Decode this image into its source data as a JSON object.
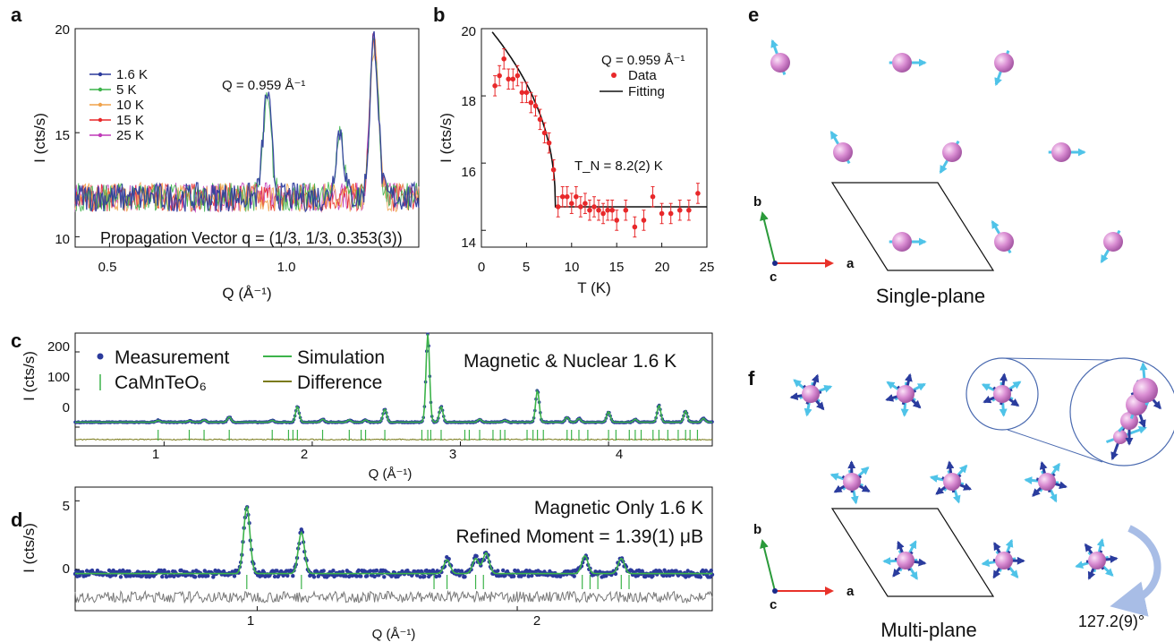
{
  "colors": {
    "blue": "#2b3a9c",
    "green": "#3cb34a",
    "orange": "#f0a24a",
    "red": "#e8282a",
    "magenta": "#c03ab8",
    "olive": "#7a7a1a",
    "grey": "#777777",
    "spin_light": "#4fc3e8",
    "spin_dark": "#2a3c9e",
    "atom": "#d98cd2",
    "axis_a": "#e8322a",
    "axis_b": "#2a9a3a",
    "axis_c": "#1a2a8a"
  },
  "icons": [
    "atom-sphere-icon",
    "spin-arrow-icon",
    "rotation-arrow-icon"
  ],
  "panel_a": {
    "label": "a",
    "xlabel": "Q (Å⁻¹)",
    "ylabel": "I (cts/s)",
    "annotation_q": "Q = 0.959 Å⁻¹",
    "annotation_prop": "Propagation Vector q = (1/3, 1/3, 0.353(3))",
    "xticks": [
      "0.5",
      "1.0"
    ],
    "yticks": [
      "10",
      "15",
      "20"
    ]
  },
  "panel_b": {
    "label": "b",
    "xlabel": "T (K)",
    "ylabel": "I (cts/s)",
    "annotation_q": "Q = 0.959 Å⁻¹",
    "legend": [
      "Data",
      "Fitting"
    ],
    "annotation_tn": "T_N = 8.2(2) K",
    "xticks": [
      "0",
      "5",
      "10",
      "15",
      "20",
      "25"
    ],
    "yticks": [
      "14",
      "16",
      "18",
      "20"
    ]
  },
  "panel_c": {
    "label": "c",
    "xlabel": "Q (Å⁻¹)",
    "ylabel": "I (cts/s)",
    "legend": [
      "Measurement",
      "Simulation",
      "CaMnTeO₆",
      "Difference"
    ],
    "annotation": "Magnetic & Nuclear  1.6 K",
    "xticks": [
      "1",
      "2",
      "3",
      "4"
    ],
    "yticks": [
      "0",
      "100",
      "200"
    ]
  },
  "panel_d": {
    "label": "d",
    "xlabel": "Q (Å⁻¹)",
    "ylabel": "I (cts/s)",
    "annotation1": "Magnetic Only  1.6 K",
    "annotation2": "Refined Moment = 1.39(1) μB",
    "xticks": [
      "1",
      "2"
    ],
    "yticks": [
      "0",
      "5"
    ]
  },
  "panel_e": {
    "label": "e",
    "caption": "Single-plane",
    "axes": [
      "a",
      "b",
      "c"
    ]
  },
  "panel_f": {
    "label": "f",
    "caption": "Multi-plane",
    "axes": [
      "a",
      "b",
      "c"
    ],
    "angle": "127.2(9)°"
  },
  "chart_data": [
    {
      "panel": "a",
      "type": "line",
      "xlabel": "Q (Å⁻¹)",
      "ylabel": "I (cts/s)",
      "xlim": [
        0.4,
        1.4
      ],
      "ylim": [
        9.5,
        20
      ],
      "background": 11.9,
      "series": [
        {
          "name": "1.6 K",
          "color": "#2b3a9c",
          "peaks": [
            [
              0.959,
              5.0
            ],
            [
              1.17,
              3.2
            ],
            [
              1.27,
              7.6
            ]
          ]
        },
        {
          "name": "5 K",
          "color": "#3cb34a",
          "peaks": [
            [
              0.959,
              4.5
            ],
            [
              1.17,
              3.0
            ],
            [
              1.27,
              7.6
            ]
          ]
        },
        {
          "name": "10 K",
          "color": "#f0a24a",
          "peaks": [
            [
              1.27,
              7.5
            ]
          ]
        },
        {
          "name": "15 K",
          "color": "#e8282a",
          "peaks": [
            [
              1.27,
              7.5
            ]
          ]
        },
        {
          "name": "25 K",
          "color": "#c03ab8",
          "peaks": [
            [
              1.27,
              7.5
            ]
          ]
        }
      ]
    },
    {
      "panel": "b",
      "type": "scatter",
      "xlabel": "T (K)",
      "ylabel": "I (cts/s)",
      "xlim": [
        0,
        25
      ],
      "ylim": [
        13.5,
        20
      ],
      "series": [
        {
          "name": "Data",
          "color": "#e8282a",
          "x": [
            1.5,
            2.0,
            2.5,
            3.0,
            3.5,
            4.0,
            4.5,
            5.0,
            5.5,
            6.0,
            6.5,
            7.0,
            7.5,
            8.0,
            8.5,
            9.0,
            9.5,
            10.0,
            10.5,
            11.0,
            11.5,
            12.0,
            12.5,
            13.0,
            13.5,
            14.0,
            14.5,
            15.0,
            16.0,
            17.0,
            18.0,
            19.0,
            20.0,
            21.0,
            22.0,
            23.0,
            24.0
          ],
          "y": [
            18.3,
            18.6,
            19.1,
            18.5,
            18.5,
            18.6,
            18.1,
            18.1,
            17.8,
            17.7,
            17.3,
            16.9,
            16.6,
            15.8,
            14.7,
            15.0,
            15.0,
            14.8,
            15.0,
            14.7,
            14.8,
            14.6,
            14.7,
            14.6,
            14.5,
            14.6,
            14.6,
            14.3,
            14.6,
            14.1,
            14.3,
            15.0,
            14.5,
            14.5,
            14.6,
            14.6,
            15.1
          ],
          "error": 0.3
        },
        {
          "name": "Fitting",
          "color": "#111111",
          "type": "line",
          "tn": 8.2,
          "base": 14.7,
          "top": 19.9
        }
      ]
    },
    {
      "panel": "c",
      "type": "line",
      "xlabel": "Q (Å⁻¹)",
      "ylabel": "I (cts/s)",
      "xlim": [
        0.4,
        4.7
      ],
      "ylim": [
        -50,
        250
      ],
      "background": 13,
      "peaks": [
        [
          0.96,
          5
        ],
        [
          1.17,
          4
        ],
        [
          1.27,
          6
        ],
        [
          1.44,
          14
        ],
        [
          1.73,
          5
        ],
        [
          1.9,
          42
        ],
        [
          2.07,
          8
        ],
        [
          2.25,
          6
        ],
        [
          2.36,
          6
        ],
        [
          2.49,
          35
        ],
        [
          2.78,
          235
        ],
        [
          2.87,
          42
        ],
        [
          3.13,
          8
        ],
        [
          3.3,
          5
        ],
        [
          3.52,
          85
        ],
        [
          3.72,
          13
        ],
        [
          3.8,
          10
        ],
        [
          4.0,
          28
        ],
        [
          4.18,
          8
        ],
        [
          4.34,
          45
        ],
        [
          4.52,
          30
        ],
        [
          4.64,
          10
        ]
      ],
      "ticks": [
        0.96,
        1.17,
        1.27,
        1.44,
        1.73,
        1.84,
        1.87,
        1.9,
        2.07,
        2.25,
        2.33,
        2.36,
        2.49,
        2.74,
        2.78,
        2.8,
        2.87,
        3.03,
        3.06,
        3.13,
        3.22,
        3.27,
        3.3,
        3.45,
        3.49,
        3.52,
        3.56,
        3.72,
        3.75,
        3.8,
        3.86,
        4.0,
        4.05,
        4.14,
        4.18,
        4.22,
        4.3,
        4.34,
        4.4,
        4.47,
        4.52,
        4.55,
        4.6
      ],
      "difference_offset": -33
    },
    {
      "panel": "d",
      "type": "line",
      "xlabel": "Q (Å⁻¹)",
      "ylabel": "I (cts/s)",
      "xlim": [
        0.3,
        2.75
      ],
      "ylim": [
        -3,
        6
      ],
      "background": -0.3,
      "peaks": [
        [
          0.96,
          4.9
        ],
        [
          1.17,
          3.0
        ],
        [
          1.73,
          1.0
        ],
        [
          1.84,
          1.1
        ],
        [
          1.88,
          1.5
        ],
        [
          2.26,
          1.3
        ],
        [
          2.4,
          1.1
        ]
      ],
      "ticks": [
        0.96,
        1.17,
        1.68,
        1.73,
        1.84,
        1.87,
        2.25,
        2.28,
        2.31,
        2.4,
        2.43
      ],
      "difference_offset": -2.0
    }
  ]
}
